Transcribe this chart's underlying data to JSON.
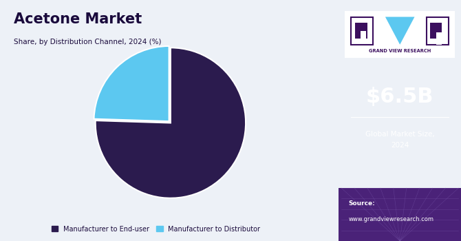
{
  "title": "Acetone Market",
  "subtitle": "Share, by Distribution Channel, 2024 (%)",
  "slices": [
    75.5,
    24.5
  ],
  "labels": [
    "Manufacturer to End-user",
    "Manufacturer to Distributor"
  ],
  "colors": [
    "#2b1b4e",
    "#5cc8f0"
  ],
  "bg_left": "#edf1f7",
  "bg_right": "#3b0f5e",
  "bg_right_bottom": "#4a2278",
  "market_size": "$6.5B",
  "market_label": "Global Market Size,\n2024",
  "source_label": "Source:",
  "source_url": "www.grandviewresearch.com",
  "gvr_label": "GRAND VIEW RESEARCH",
  "title_color": "#1a0a3c",
  "subtitle_color": "#1a0a3c",
  "legend_color": "#1a0a3c",
  "right_text_color": "#ffffff",
  "start_angle": 90,
  "explode": [
    0,
    0.03
  ]
}
